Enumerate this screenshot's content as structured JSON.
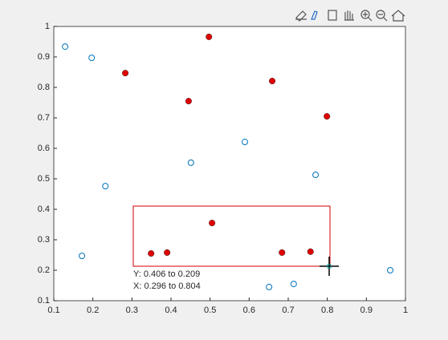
{
  "chart_data": {
    "type": "scatter",
    "series": [
      {
        "color": "#0072bd",
        "marker": "open",
        "x": [
          0.129,
          0.197,
          0.232,
          0.172,
          0.451,
          0.589,
          0.77,
          0.651,
          0.714,
          0.961
        ],
        "values": [
          0.934,
          0.897,
          0.476,
          0.247,
          0.553,
          0.621,
          0.513,
          0.145,
          0.155,
          0.2
        ]
      },
      {
        "color": "#e00000",
        "marker": "filled",
        "x": [
          0.497,
          0.283,
          0.445,
          0.659,
          0.799,
          0.505,
          0.349,
          0.39,
          0.684,
          0.757
        ],
        "values": [
          0.966,
          0.847,
          0.755,
          0.821,
          0.705,
          0.355,
          0.255,
          0.258,
          0.258,
          0.261
        ]
      }
    ],
    "xlim": [
      0.1,
      1
    ],
    "ylim": [
      0.1,
      1
    ],
    "xticks": [
      0.1,
      0.2,
      0.3,
      0.4,
      0.5,
      0.6,
      0.7,
      0.8,
      0.9,
      1
    ],
    "yticks": [
      0.1,
      0.2,
      0.3,
      0.4,
      0.5,
      0.6,
      0.7,
      0.8,
      0.9,
      1
    ],
    "grid": false,
    "brush_labels": [
      "Y: 0.406 to 0.209",
      "X: 0.296 to 0.804"
    ]
  }
}
